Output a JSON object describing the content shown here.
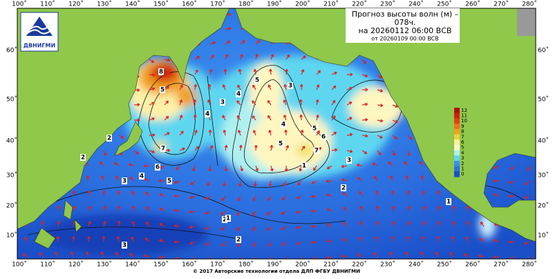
{
  "logo": {
    "text": "ДВНИГМИ"
  },
  "title": {
    "line1": "Прогноз высоты волн (м) –",
    "line2": "078ч.",
    "line3": "на 20260112 06:00 ВСВ",
    "line4": "от 20260109 00:00 ВСВ"
  },
  "longitudes": [
    "100˚",
    "110˚",
    "120˚",
    "130˚",
    "140˚",
    "150˚",
    "160˚",
    "170˚",
    "180˚",
    "190˚",
    "200˚",
    "210˚",
    "220˚",
    "230˚",
    "240˚",
    "250˚",
    "260˚",
    "270˚",
    "280˚"
  ],
  "latitudes": [
    "60˚",
    "50˚",
    "40˚",
    "30˚",
    "20˚",
    "10˚"
  ],
  "colorbar": [
    "12",
    "11",
    "10",
    "9",
    "8",
    "7",
    "6",
    "5",
    "4",
    "3",
    "2",
    "1",
    "0"
  ],
  "contour_labels": [
    "8",
    "7",
    "6",
    "5",
    "4",
    "3",
    "2",
    "5",
    "4",
    "3",
    "7",
    "6",
    "5",
    "4",
    "3",
    "2",
    "1",
    "5",
    "4",
    "5",
    "3",
    "2",
    "3",
    "2",
    "1",
    "1",
    "2"
  ],
  "footer": "© 2017 Авторские технологии отдела ДЛП ФГБУ ДВНИГМИ"
}
